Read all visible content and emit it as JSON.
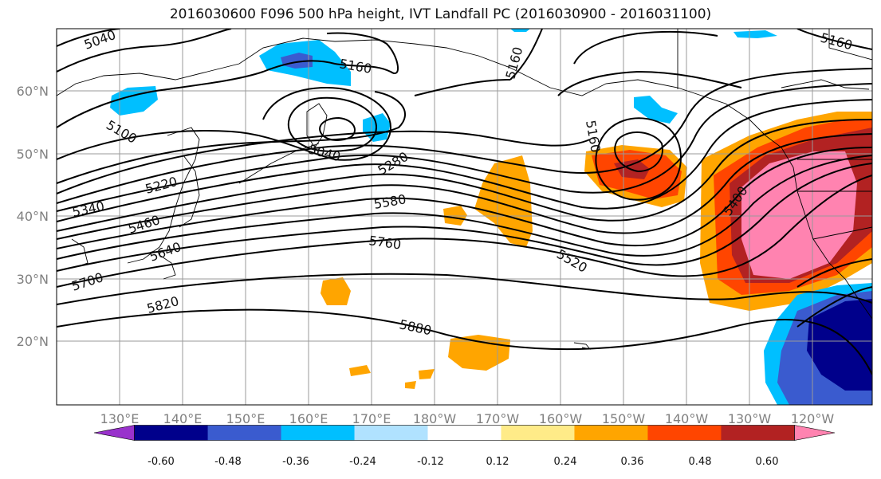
{
  "title": "2016030600 F096 500 hPa height, IVT Landfall PC (2016030900 - 2016031100)",
  "lat_ticks": [
    "60°N",
    "50°N",
    "40°N",
    "30°N",
    "20°N"
  ],
  "lon_ticks": [
    "130°E",
    "140°E",
    "150°E",
    "160°E",
    "170°E",
    "180°W",
    "170°W",
    "160°W",
    "150°W",
    "140°W",
    "130°W",
    "120°W"
  ],
  "contour_labels": [
    "5040",
    "5160",
    "5160",
    "5160",
    "5100",
    "5040",
    "5160",
    "5280",
    "5220",
    "5340",
    "5460",
    "5580",
    "5640",
    "5700",
    "5760",
    "5520",
    "5820",
    "5880",
    "5400"
  ],
  "colorbar": {
    "tick_labels": [
      "-0.60",
      "-0.48",
      "-0.36",
      "-0.24",
      "-0.12",
      "0.12",
      "0.24",
      "0.36",
      "0.48",
      "0.60"
    ],
    "colors": [
      "#9932cc",
      "#00008b",
      "#3a5bcf",
      "#00bfff",
      "#b0e2ff",
      "#ffffff",
      "#ffeb88",
      "#ffa500",
      "#ff4500",
      "#b22222",
      "#ff83b0"
    ]
  }
}
